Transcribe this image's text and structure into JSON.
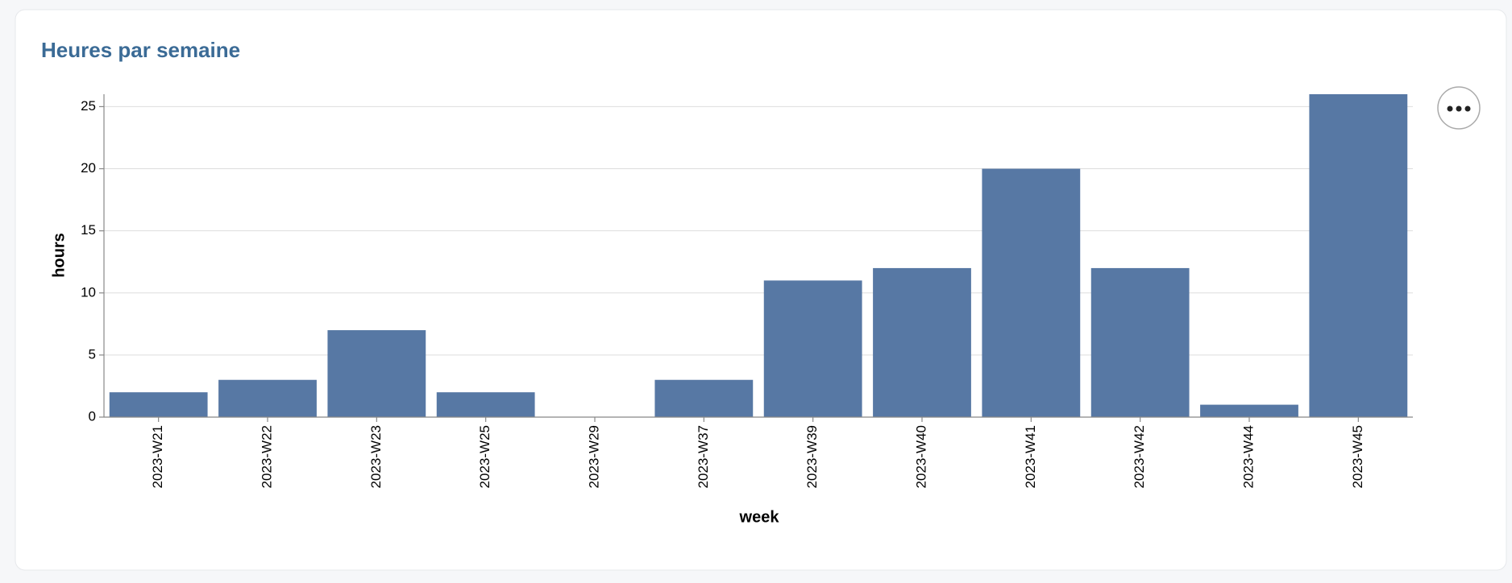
{
  "chart_data": {
    "type": "bar",
    "title": "Heures par semaine",
    "x_label": "week",
    "y_label": "hours",
    "categories": [
      "2023-W21",
      "2023-W22",
      "2023-W23",
      "2023-W25",
      "2023-W29",
      "2023-W37",
      "2023-W39",
      "2023-W40",
      "2023-W41",
      "2023-W42",
      "2023-W44",
      "2023-W45"
    ],
    "values": [
      2,
      3,
      7,
      2,
      0,
      3,
      11,
      12,
      20,
      12,
      1,
      26
    ],
    "color": "#5778a4",
    "ylim": [
      0,
      26
    ],
    "yticks": [
      0,
      5,
      10,
      15,
      20,
      25
    ],
    "grid": true
  }
}
